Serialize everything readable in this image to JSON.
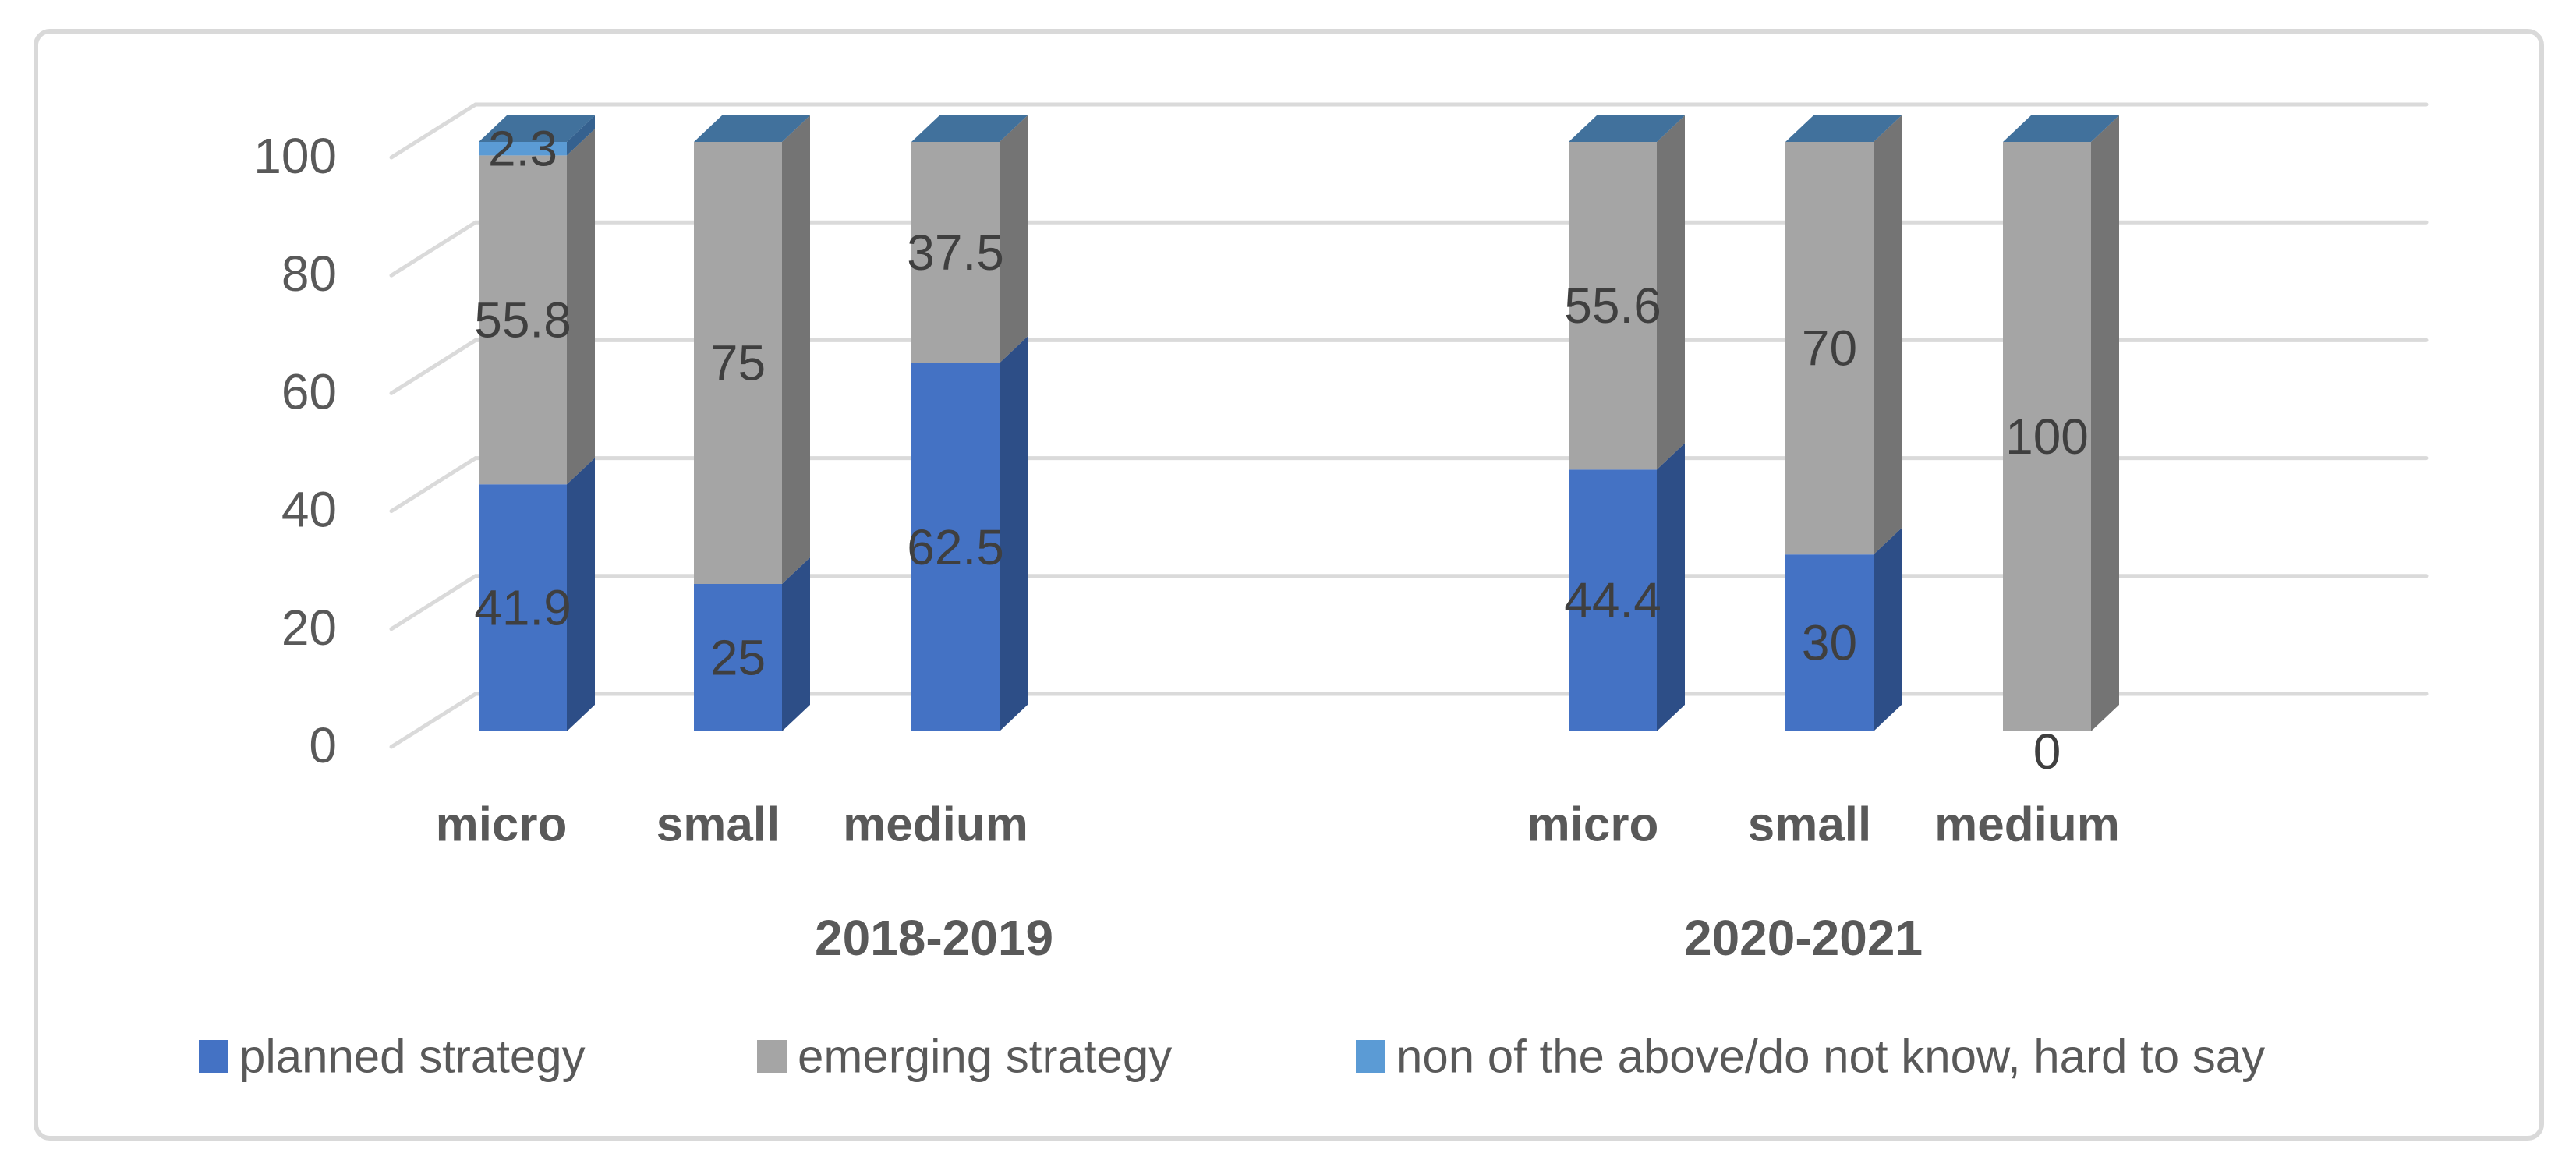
{
  "chart_data": {
    "type": "bar",
    "subtype": "stacked-column-3d",
    "title": "",
    "xlabel": "",
    "ylabel": "",
    "ylim": [
      0,
      100
    ],
    "yticks": [
      "0",
      "20",
      "40",
      "60",
      "80",
      "100"
    ],
    "grid": true,
    "legend_position": "bottom",
    "series": [
      {
        "key": "planned",
        "name": "planned strategy",
        "front": "#4472C4",
        "side": "#2D4E87"
      },
      {
        "key": "emerging",
        "name": "emerging strategy",
        "front": "#A5A5A5",
        "side": "#747474"
      },
      {
        "key": "non",
        "name": "non of the above/do not know, hard to say",
        "front": "#5B9BD5",
        "side": "#35618F"
      }
    ],
    "top_cap_color": "#41719C",
    "groups": [
      {
        "label": "2018-2019",
        "bars": [
          {
            "category": "micro",
            "values": {
              "planned": 41.9,
              "emerging": 55.8,
              "non": 2.3
            },
            "labels": [
              {
                "series": "planned",
                "text": "41.9"
              },
              {
                "series": "emerging",
                "text": "55.8"
              },
              {
                "series": "non",
                "text": "2.3"
              }
            ]
          },
          {
            "category": "small",
            "values": {
              "planned": 25,
              "emerging": 75,
              "non": 0
            },
            "labels": [
              {
                "series": "planned",
                "text": "25"
              },
              {
                "series": "emerging",
                "text": "75"
              }
            ]
          },
          {
            "category": "medium",
            "values": {
              "planned": 62.5,
              "emerging": 37.5,
              "non": 0
            },
            "labels": [
              {
                "series": "planned",
                "text": "62.5"
              },
              {
                "series": "emerging",
                "text": "37.5"
              }
            ]
          }
        ]
      },
      {
        "label": "2020-2021",
        "bars": [
          {
            "category": "micro",
            "values": {
              "planned": 44.4,
              "emerging": 55.6,
              "non": 0
            },
            "labels": [
              {
                "series": "planned",
                "text": "44.4"
              },
              {
                "series": "emerging",
                "text": "55.6"
              }
            ]
          },
          {
            "category": "small",
            "values": {
              "planned": 30,
              "emerging": 70,
              "non": 0
            },
            "labels": [
              {
                "series": "planned",
                "text": "30"
              },
              {
                "series": "emerging",
                "text": "70"
              }
            ]
          },
          {
            "category": "medium",
            "values": {
              "planned": 0,
              "emerging": 100,
              "non": 0
            },
            "labels": [
              {
                "series": "planned",
                "text": "0"
              },
              {
                "series": "emerging",
                "text": "100"
              }
            ]
          }
        ]
      }
    ],
    "colors": {
      "gridline": "#DADADA",
      "figure_border": "#D9D9D9",
      "data_label": "#3F3F3F",
      "axis_label": "#595959",
      "legend_text": "#595959",
      "background": "#FFFFFF"
    }
  }
}
